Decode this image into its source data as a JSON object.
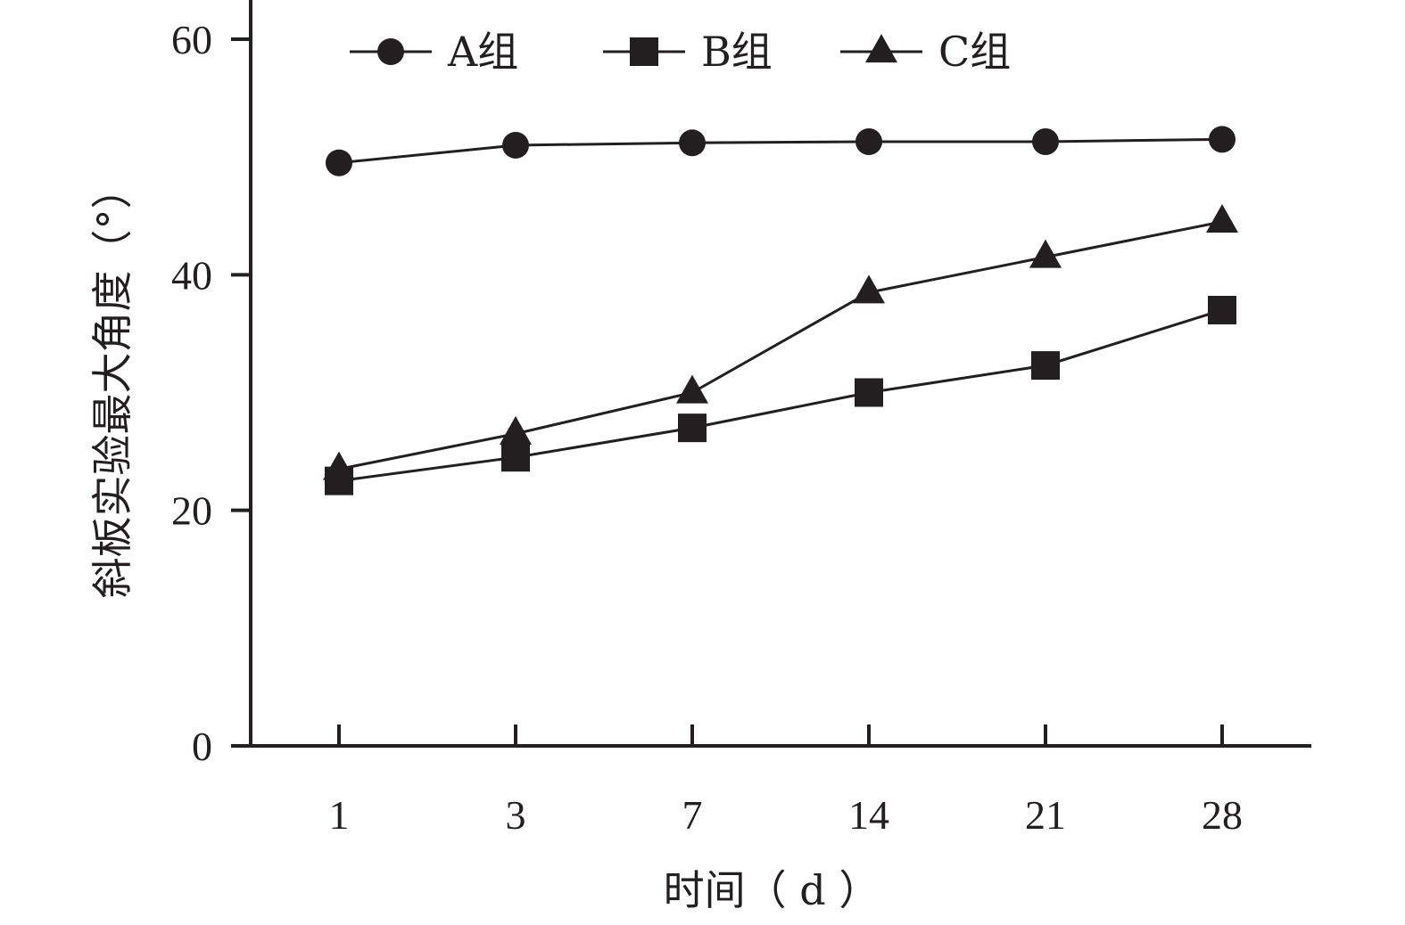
{
  "chart_data": {
    "type": "line",
    "categories": [
      "1",
      "3",
      "7",
      "14",
      "21",
      "28"
    ],
    "xlabel": "时间（ d ）",
    "ylabel": "斜板实验最大角度（°）",
    "ylim": [
      0,
      60
    ],
    "yticks": [
      "0",
      "20",
      "40",
      "60"
    ],
    "legend_position": "top",
    "grid": false,
    "series": [
      {
        "name": "A组",
        "marker": "circle",
        "values": [
          49.5,
          51.0,
          51.2,
          51.3,
          51.3,
          51.5
        ]
      },
      {
        "name": "B组",
        "marker": "square",
        "values": [
          22.5,
          24.5,
          27.0,
          30.0,
          32.3,
          37.0
        ]
      },
      {
        "name": "C组",
        "marker": "triangle",
        "values": [
          23.5,
          26.5,
          30.0,
          38.5,
          41.5,
          44.5
        ]
      }
    ]
  },
  "colors": {
    "ink": "#231f20",
    "background": "#ffffff"
  }
}
